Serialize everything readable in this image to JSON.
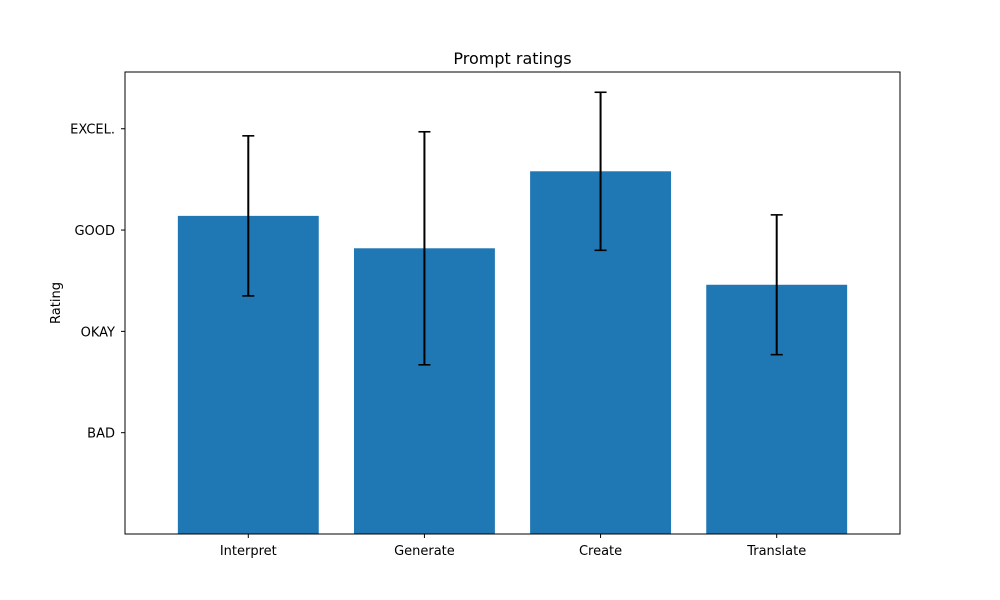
{
  "chart_data": {
    "type": "bar",
    "title": "Prompt ratings",
    "xlabel": "",
    "ylabel": "Rating",
    "categories": [
      "Interpret",
      "Generate",
      "Create",
      "Translate"
    ],
    "values": [
      3.14,
      2.82,
      3.58,
      2.46
    ],
    "error": [
      0.79,
      1.15,
      0.78,
      0.69
    ],
    "ylim": [
      0,
      4.56
    ],
    "yticks": [
      {
        "value": 1,
        "label": "BAD"
      },
      {
        "value": 2,
        "label": "OKAY"
      },
      {
        "value": 3,
        "label": "GOOD"
      },
      {
        "value": 4,
        "label": "EXCEL."
      }
    ],
    "bar_color": "#1f77b4",
    "errorbar_color": "#000000",
    "grid": false,
    "legend": "none"
  }
}
